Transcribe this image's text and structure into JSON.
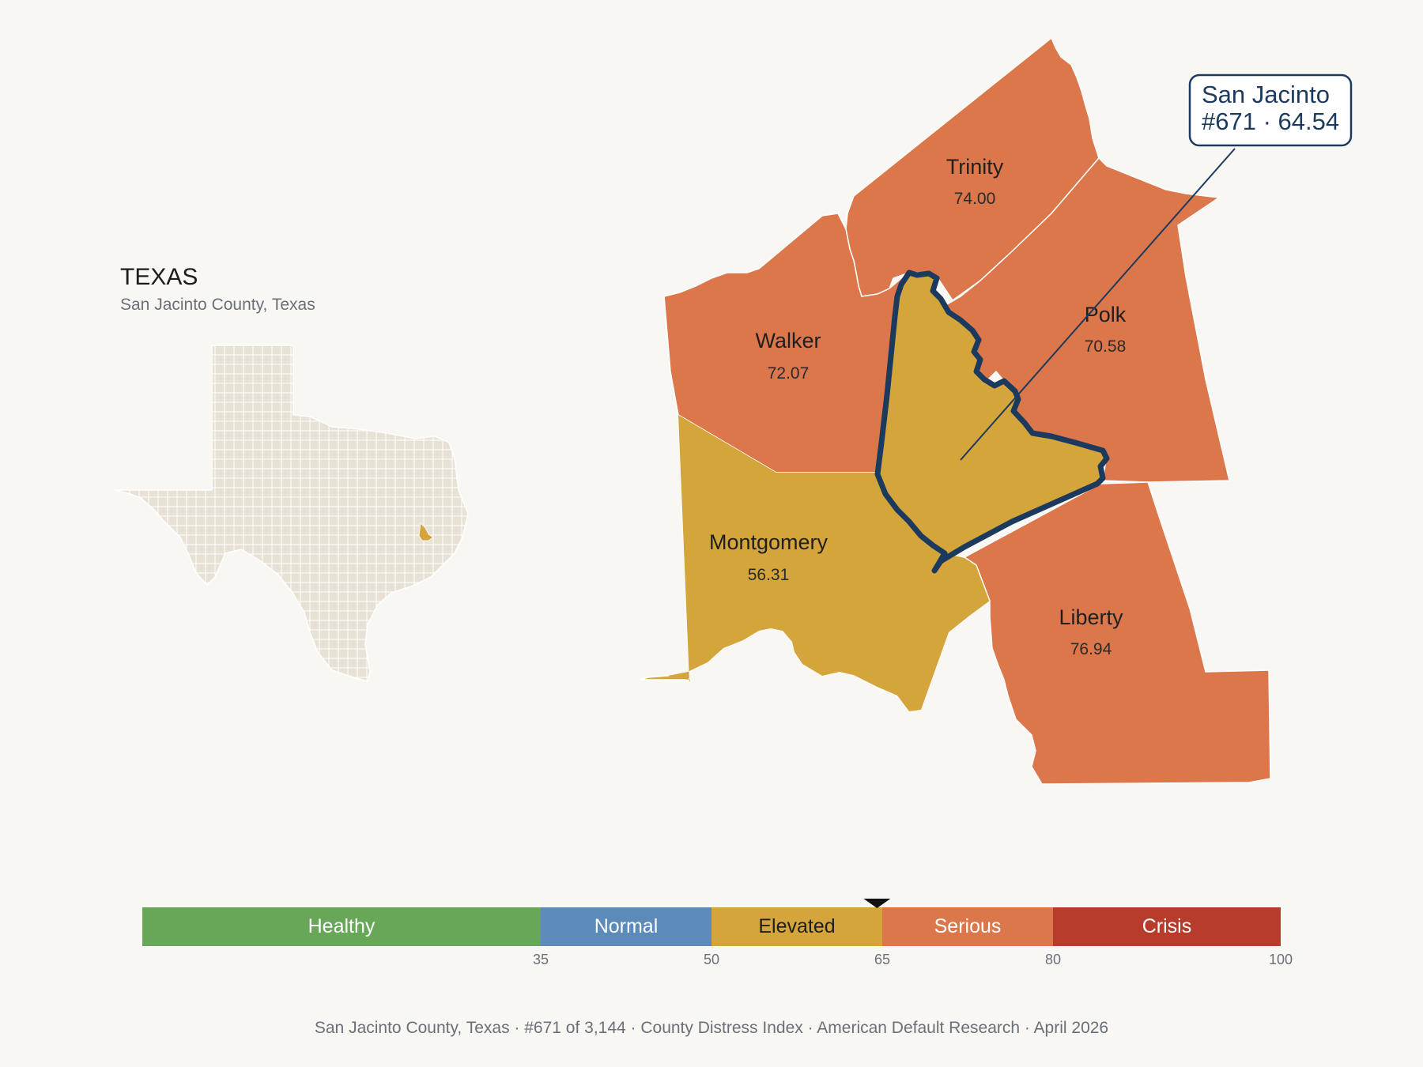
{
  "inset": {
    "title": "TEXAS",
    "subtitle": "San Jacinto County, Texas"
  },
  "colors": {
    "background": "#f9f7f4",
    "state_fill": "#e8e2d6",
    "elevated": "#d3a53a",
    "serious": "#db774b",
    "highlight_outline": "#1c3a5e"
  },
  "counties": [
    {
      "name": "Trinity",
      "value": "74.00",
      "category": "Serious"
    },
    {
      "name": "Walker",
      "value": "72.07",
      "category": "Serious"
    },
    {
      "name": "Polk",
      "value": "70.58",
      "category": "Serious"
    },
    {
      "name": "Montgomery",
      "value": "56.31",
      "category": "Elevated"
    },
    {
      "name": "Liberty",
      "value": "76.94",
      "category": "Serious"
    },
    {
      "name": "San Jacinto",
      "value": "64.54",
      "category": "Elevated"
    }
  ],
  "callout": {
    "line1": "San Jacinto",
    "line2": "#671 · 64.54"
  },
  "scale": {
    "min": 0,
    "max": 100,
    "marker_value": 64.54,
    "segments": [
      {
        "label": "Healthy",
        "from": 0,
        "to": 35,
        "color": "#67a757",
        "text_color": "#ffffff"
      },
      {
        "label": "Normal",
        "from": 35,
        "to": 50,
        "color": "#5c8bba",
        "text_color": "#ffffff"
      },
      {
        "label": "Elevated",
        "from": 50,
        "to": 65,
        "color": "#d3a53a",
        "text_color": "#1f1f1f"
      },
      {
        "label": "Serious",
        "from": 65,
        "to": 80,
        "color": "#db774b",
        "text_color": "#ffffff"
      },
      {
        "label": "Crisis",
        "from": 80,
        "to": 100,
        "color": "#b83c2b",
        "text_color": "#ffffff"
      }
    ],
    "ticks": [
      "35",
      "50",
      "65",
      "80",
      "100"
    ]
  },
  "footer": "San Jacinto County, Texas  ·  #671 of 3,144  ·  County Distress Index  ·  American Default Research  ·  April 2026"
}
